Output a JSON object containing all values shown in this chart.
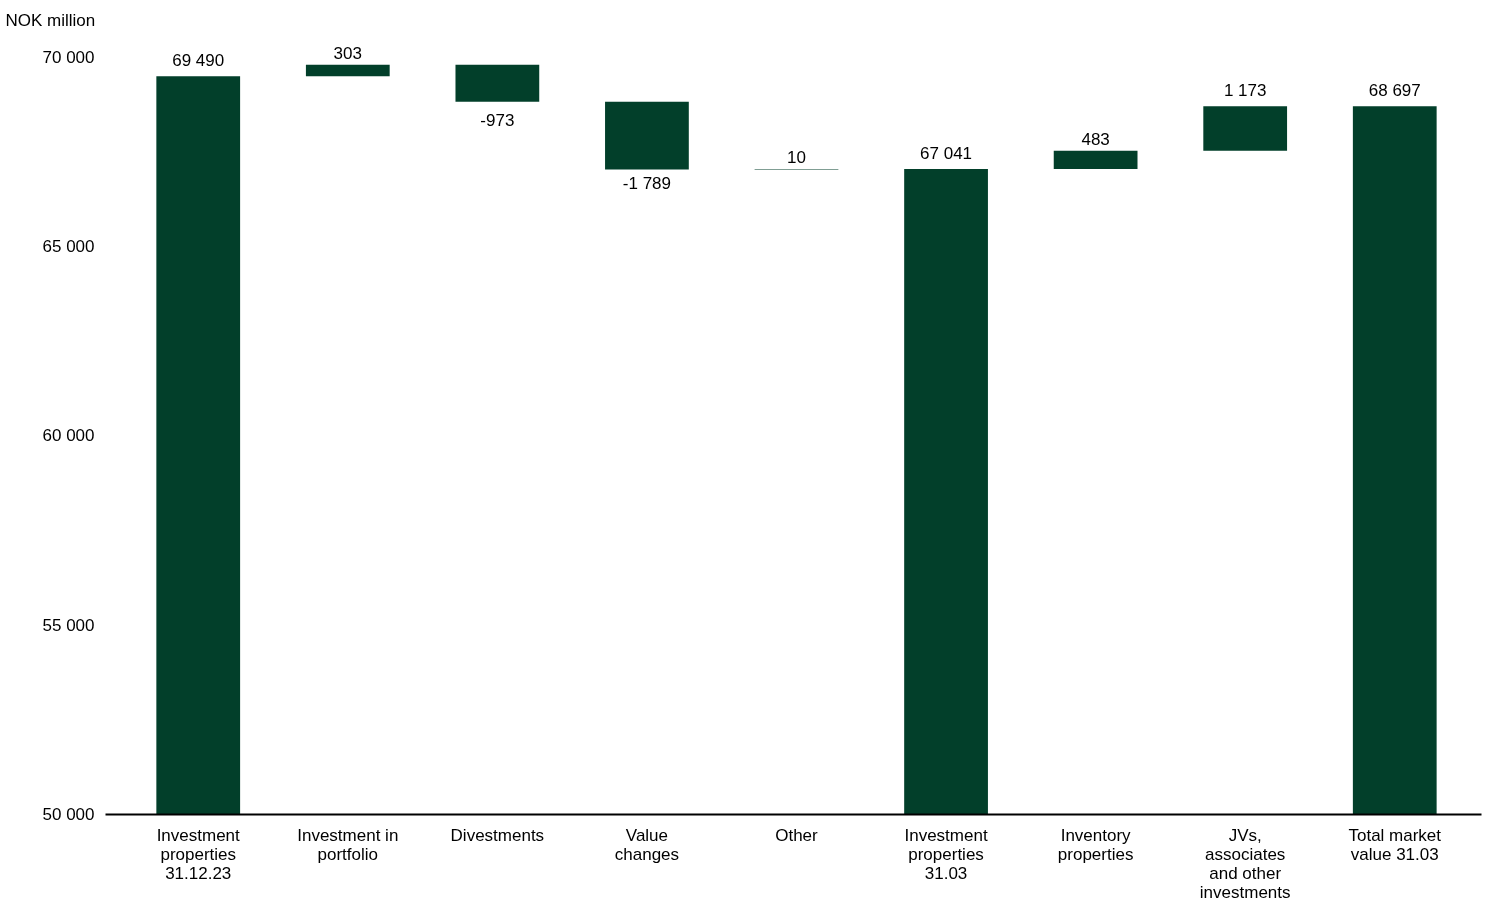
{
  "chart_data": {
    "type": "bar",
    "ylabel": "NOK million",
    "categories": [
      "Investment\nproperties\n31.12.23",
      "Investment in\nportfolio",
      "Divestments",
      "Value\nchanges",
      "Other",
      "Investment\nproperties\n31.03",
      "Inventory\nproperties",
      "JVs,\nassociates\nand other\ninvestments",
      "Total market\nvalue 31.03"
    ],
    "values": [
      69490,
      303,
      -973,
      -1789,
      10,
      67041,
      483,
      1173,
      68697
    ],
    "base": [
      0,
      69490,
      69793,
      68820,
      67031,
      0,
      67041,
      67524,
      0
    ],
    "value_labels": [
      "69 490",
      "303",
      "-973",
      "-1 789",
      "10",
      "67 041",
      "483",
      "1 173",
      "68 697"
    ],
    "color": "#023f2a",
    "ylim": [
      50000,
      70000
    ],
    "yticks": [
      {
        "value": 50000,
        "label": "50 000"
      },
      {
        "value": 55000,
        "label": "55 000"
      },
      {
        "value": 60000,
        "label": "60 000"
      },
      {
        "value": 65000,
        "label": "65 000"
      },
      {
        "value": 70000,
        "label": "70 000"
      }
    ],
    "grid": false
  }
}
